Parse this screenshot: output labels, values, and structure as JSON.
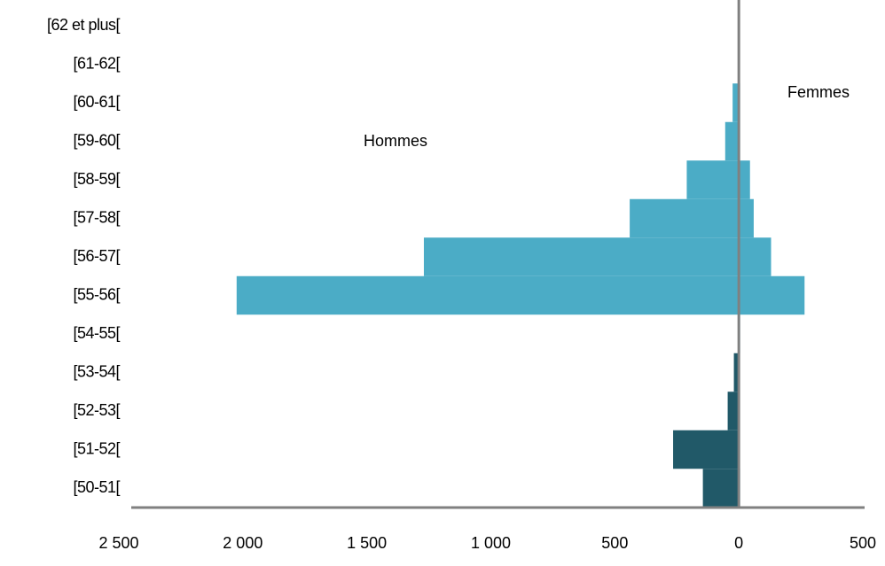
{
  "chart_data": {
    "type": "pyramid",
    "categories": [
      "[50-51[",
      "[51-52[",
      "[52-53[",
      "[53-54[",
      "[54-55[",
      "[55-56[",
      "[56-57[",
      "[57-58[",
      "[58-59[",
      "[59-60[",
      "[60-61[",
      "[61-62[",
      "[62 et plus["
    ],
    "series": [
      {
        "name": "Hommes",
        "colors": [
          "#215968",
          "#215968",
          "#215968",
          "#215968",
          "#215968",
          "#4bacc6",
          "#4bacc6",
          "#4bacc6",
          "#4bacc6",
          "#4bacc6",
          "#4bacc6",
          "#4bacc6",
          "#4bacc6"
        ],
        "values": [
          -145,
          -265,
          -45,
          -20,
          0,
          -2025,
          -1270,
          -440,
          -210,
          -55,
          -25,
          0,
          0
        ]
      },
      {
        "name": "Femmes",
        "colors": [
          "#4bacc6",
          "#4bacc6",
          "#4bacc6",
          "#4bacc6",
          "#4bacc6",
          "#4bacc6",
          "#4bacc6",
          "#4bacc6",
          "#4bacc6",
          "#4bacc6",
          "#4bacc6",
          "#4bacc6",
          "#4bacc6"
        ],
        "values": [
          5,
          0,
          0,
          0,
          5,
          265,
          130,
          60,
          45,
          5,
          5,
          0,
          0
        ]
      }
    ],
    "xlim": [
      -2500,
      500
    ],
    "xticks": [
      {
        "value": -2500,
        "label": "2 500"
      },
      {
        "value": -2000,
        "label": "2 000"
      },
      {
        "value": -1500,
        "label": "1 500"
      },
      {
        "value": -1000,
        "label": "1 000"
      },
      {
        "value": -500,
        "label": "500"
      },
      0,
      500
    ],
    "axis_color": "#808080"
  }
}
